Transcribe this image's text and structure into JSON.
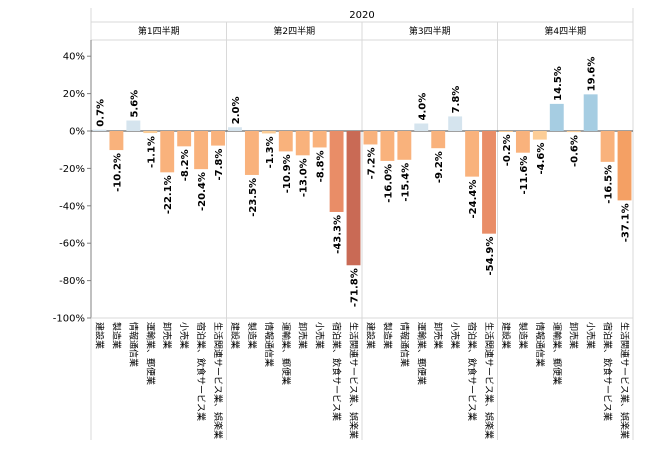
{
  "chart_data": {
    "type": "bar",
    "title": "2020",
    "ylim": [
      -100,
      40
    ],
    "yticks": [
      "40%",
      "20%",
      "0%",
      "-20%",
      "-40%",
      "-60%",
      "-80%",
      "-100%"
    ],
    "ytick_values": [
      40,
      20,
      0,
      -20,
      -40,
      -60,
      -80,
      -100
    ],
    "grid": false,
    "categories": [
      "建設業",
      "製造業",
      "情報通信業",
      "運輸業、郵便業",
      "卸売業",
      "小売業",
      "宿泊業、飲食サービス業",
      "生活関連サービス業、娯楽業"
    ],
    "groups": [
      {
        "name": "第1四半期",
        "values": [
          0.7,
          -10.2,
          5.6,
          -1.1,
          -22.1,
          -8.2,
          -20.4,
          -7.8
        ],
        "labels": [
          "0.7%",
          "-10.2%",
          "5.6%",
          "-1.1%",
          "-22.1%",
          "-8.2%",
          "-20.4%",
          "-7.8%"
        ]
      },
      {
        "name": "第2四半期",
        "values": [
          2.0,
          -23.5,
          -1.3,
          -10.9,
          -13.0,
          -8.8,
          -43.3,
          -71.8
        ],
        "labels": [
          "2.0%",
          "-23.5%",
          "-1.3%",
          "-10.9%",
          "-13.0%",
          "-8.8%",
          "-43.3%",
          "-71.8%"
        ]
      },
      {
        "name": "第3四半期",
        "values": [
          -7.2,
          -16.0,
          -15.4,
          4.0,
          -9.2,
          7.8,
          -24.4,
          -54.9
        ],
        "labels": [
          "-7.2%",
          "-16.0%",
          "-15.4%",
          "4.0%",
          "-9.2%",
          "7.8%",
          "-24.4%",
          "-54.9%"
        ]
      },
      {
        "name": "第4四半期",
        "values": [
          -0.2,
          -11.6,
          -4.6,
          14.5,
          -0.6,
          19.6,
          -16.5,
          -37.1
        ],
        "labels": [
          "-0.2%",
          "-11.6%",
          "-4.6%",
          "14.5%",
          "-0.6%",
          "19.6%",
          "-16.5%",
          "-37.1%"
        ]
      }
    ],
    "colors": {
      "positive_light": "#d5e4ee",
      "positive": "#a6cde2",
      "neg_1": "#fccd96",
      "neg_2": "#f9b27c",
      "neg_3": "#f4a064",
      "neg_4": "#e98d67",
      "neg_5": "#c96a55",
      "frame": "#d9d9d9"
    }
  }
}
